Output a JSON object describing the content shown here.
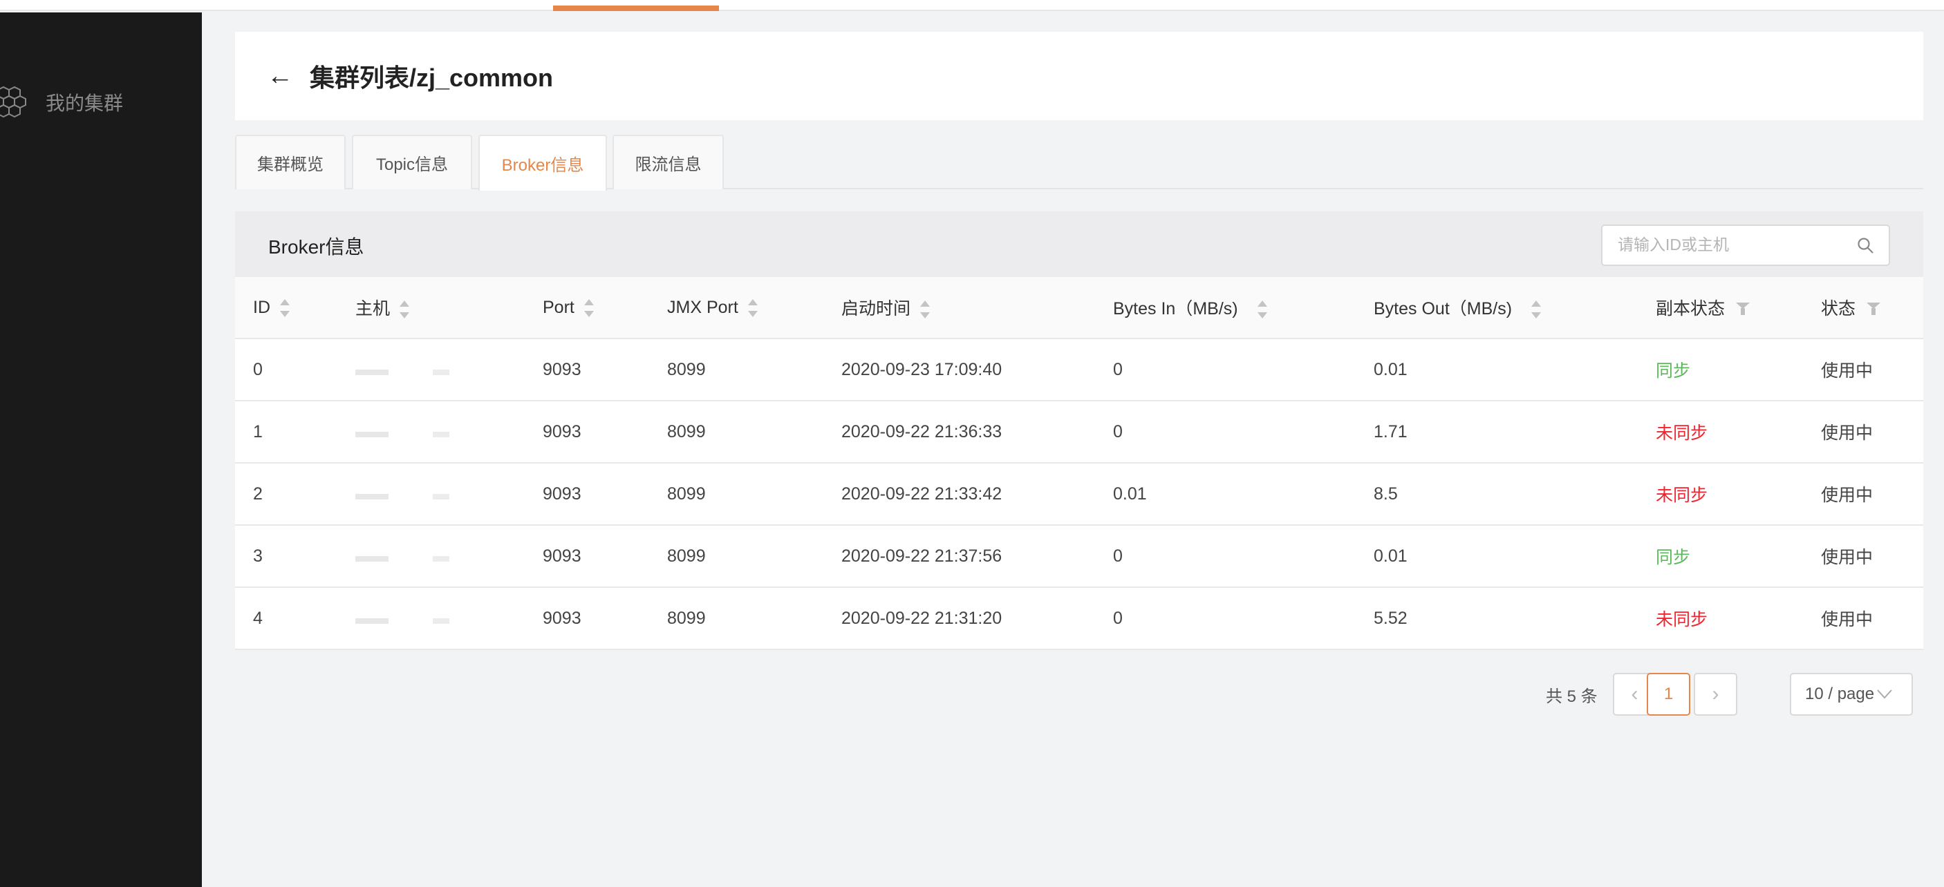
{
  "sidebar": {
    "items": [
      {
        "label": "我的集群",
        "icon": "cluster-hexagon-icon"
      }
    ]
  },
  "header": {
    "title": "集群列表/zj_common",
    "back_icon": "arrow-left-icon"
  },
  "tabs": [
    {
      "label": "集群概览"
    },
    {
      "label": "Topic信息"
    },
    {
      "label": "Broker信息",
      "active": true
    },
    {
      "label": "限流信息"
    }
  ],
  "section": {
    "title": "Broker信息",
    "search_placeholder": "请输入ID或主机"
  },
  "table": {
    "columns": [
      "ID",
      "主机",
      "Port",
      "JMX Port",
      "启动时间",
      "Bytes In（MB/s)",
      "Bytes Out（MB/s)",
      "副本状态",
      "状态"
    ],
    "rows": [
      {
        "id": "0",
        "host": "",
        "port": "9093",
        "jmx": "8099",
        "start": "2020-09-23 17:09:40",
        "in": "0",
        "out": "0.01",
        "replica": "同步",
        "replica_ok": true,
        "status": "使用中"
      },
      {
        "id": "1",
        "host": "",
        "port": "9093",
        "jmx": "8099",
        "start": "2020-09-22 21:36:33",
        "in": "0",
        "out": "1.71",
        "replica": "未同步",
        "replica_ok": false,
        "status": "使用中"
      },
      {
        "id": "2",
        "host": "",
        "port": "9093",
        "jmx": "8099",
        "start": "2020-09-22 21:33:42",
        "in": "0.01",
        "out": "8.5",
        "replica": "未同步",
        "replica_ok": false,
        "status": "使用中"
      },
      {
        "id": "3",
        "host": "",
        "port": "9093",
        "jmx": "8099",
        "start": "2020-09-22 21:37:56",
        "in": "0",
        "out": "0.01",
        "replica": "同步",
        "replica_ok": true,
        "status": "使用中"
      },
      {
        "id": "4",
        "host": "",
        "port": "9093",
        "jmx": "8099",
        "start": "2020-09-22 21:31:20",
        "in": "0",
        "out": "5.52",
        "replica": "未同步",
        "replica_ok": false,
        "status": "使用中"
      }
    ]
  },
  "pagination": {
    "total": "共 5 条",
    "current": "1",
    "prev": "‹",
    "next": "›",
    "page_size": "10 / page"
  },
  "colors": {
    "accent": "#e5874a",
    "success": "#5cb85c",
    "danger": "#f5222d",
    "sidebar": "#1a1a1a"
  }
}
